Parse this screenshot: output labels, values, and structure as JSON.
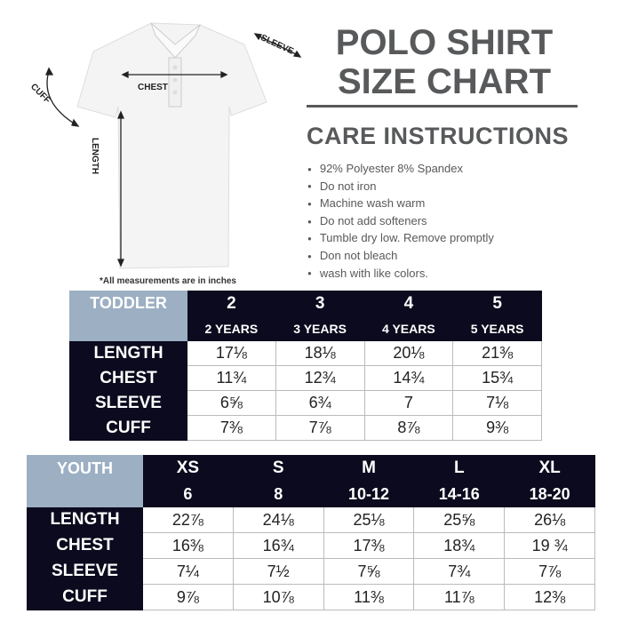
{
  "title": {
    "line1": "POLO SHIRT",
    "line2": "SIZE CHART"
  },
  "care": {
    "heading": "CARE INSTRUCTIONS",
    "items": [
      "92% Polyester 8% Spandex",
      "Do not iron",
      "Machine wash warm",
      "Do not add softeners",
      "Tumble dry low. Remove promptly",
      "Don not bleach",
      "wash with like colors."
    ]
  },
  "shirt": {
    "labels": {
      "chest": "CHEST",
      "sleeve": "SLEEVE",
      "cuff": "CUFF",
      "length": "LENGTH"
    },
    "note": "*All measurements are in inches"
  },
  "toddler": {
    "label": "TODDLER",
    "sizes": [
      "2",
      "3",
      "4",
      "5"
    ],
    "ages": [
      "2 YEARS",
      "3 YEARS",
      "4 YEARS",
      "5 YEARS"
    ],
    "rows": [
      {
        "name": "LENGTH",
        "values": [
          "17⅛",
          "18⅛",
          "20⅛",
          "21⅜"
        ]
      },
      {
        "name": "CHEST",
        "values": [
          "11¾",
          "12¾",
          "14¾",
          "15¾"
        ]
      },
      {
        "name": "SLEEVE",
        "values": [
          "6⅝",
          "6¾",
          "7",
          "7⅛"
        ]
      },
      {
        "name": "CUFF",
        "values": [
          "7⅜",
          "7⅞",
          "8⅞",
          "9⅜"
        ]
      }
    ]
  },
  "youth": {
    "label": "YOUTH",
    "sizes": [
      "XS",
      "S",
      "M",
      "L",
      "XL"
    ],
    "ages": [
      "6",
      "8",
      "10-12",
      "14-16",
      "18-20"
    ],
    "rows": [
      {
        "name": "LENGTH",
        "values": [
          "22⅞",
          "24⅛",
          "25⅛",
          "25⅝",
          "26⅛"
        ]
      },
      {
        "name": "CHEST",
        "values": [
          "16⅜",
          "16¾",
          "17⅜",
          "18¾",
          "19 ¾"
        ]
      },
      {
        "name": "SLEEVE",
        "values": [
          "7¼",
          "7½",
          "7⅝",
          "7¾",
          "7⅞"
        ]
      },
      {
        "name": "CUFF",
        "values": [
          "9⅞",
          "10⅞",
          "11⅜",
          "11⅞",
          "12⅜"
        ]
      }
    ]
  },
  "colors": {
    "header_dark": "#0b0a1e",
    "header_light": "#9cafc3",
    "title_gray": "#58595b"
  }
}
